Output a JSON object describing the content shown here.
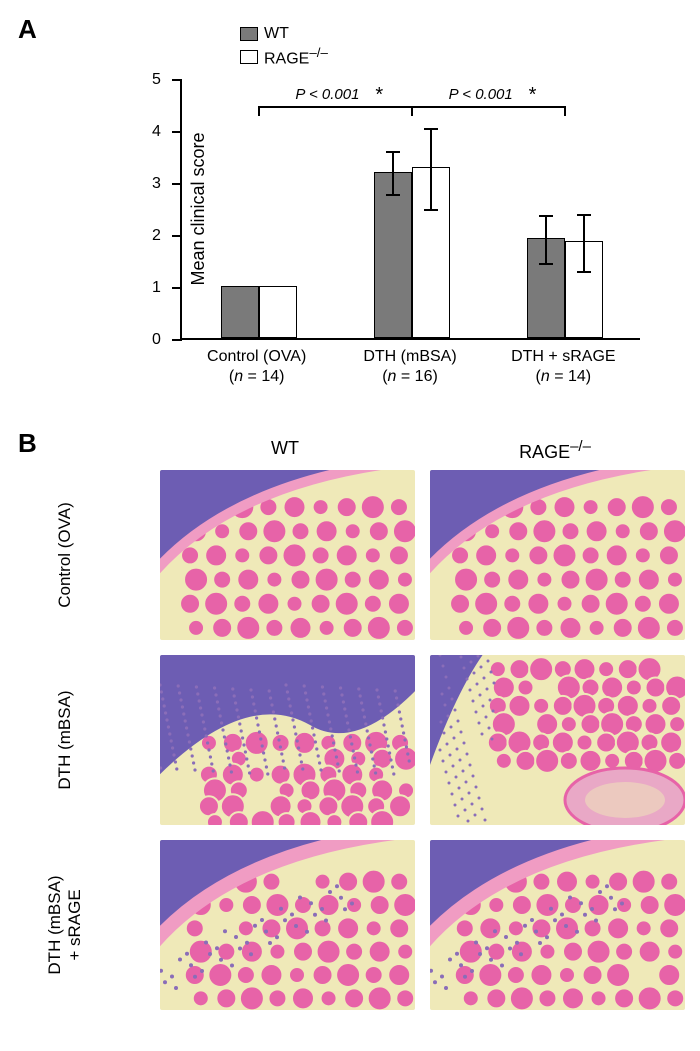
{
  "panelA": {
    "label": "A",
    "legend": [
      {
        "label": "WT",
        "color": "#7a7a7a"
      },
      {
        "label": "RAGE",
        "sup": "–/–",
        "color": "#ffffff"
      }
    ],
    "ylabel": "Mean clinical score",
    "ylim": [
      0,
      5
    ],
    "yticks": [
      0,
      1,
      2,
      3,
      4,
      5
    ],
    "bar_border": "#000000",
    "groups": [
      {
        "x_label_line1": "Control (OVA)",
        "x_label_line2": "(",
        "n_label": "n",
        "n_value": " = 14)",
        "bars": [
          {
            "value": 1.0,
            "color": "#7a7a7a"
          },
          {
            "value": 1.0,
            "color": "#ffffff"
          }
        ]
      },
      {
        "x_label_line1": "DTH (mBSA)",
        "x_label_line2": "(",
        "n_label": "n",
        "n_value": " = 16)",
        "bars": [
          {
            "value": 3.2,
            "color": "#7a7a7a",
            "err": 0.42
          },
          {
            "value": 3.28,
            "color": "#ffffff",
            "err": 0.78
          }
        ]
      },
      {
        "x_label_line1": "DTH + sRAGE",
        "x_label_line2": "(",
        "n_label": "n",
        "n_value": " = 14)",
        "bars": [
          {
            "value": 1.93,
            "color": "#7a7a7a",
            "err": 0.46
          },
          {
            "value": 1.86,
            "color": "#ffffff",
            "err": 0.55
          }
        ]
      }
    ],
    "signif": [
      {
        "from_group": 0,
        "to_group": 1,
        "y": 4.5,
        "label_p": "P",
        "label_rest": " < 0.001",
        "star": "*"
      },
      {
        "from_group": 1,
        "to_group": 2,
        "y": 4.5,
        "label_p": "P",
        "label_rest": " < 0.001",
        "star": "*"
      }
    ]
  },
  "panelB": {
    "label": "B",
    "col_heads": [
      "WT",
      "RAGE"
    ],
    "col_head_sup": "–/–",
    "rows": [
      {
        "label": "Control (OVA)"
      },
      {
        "label": "DTH (mBSA)"
      },
      {
        "label_line1": "DTH (mBSA)",
        "label_line2": "+ sRAGE"
      }
    ],
    "colors": {
      "bg": "#efe9b8",
      "muscle": "#e763a8",
      "muscle_light": "#f09cc3",
      "epi": "#6d5db3",
      "infiltrate": "#8a6db8",
      "bone": "#e9a8c6"
    }
  }
}
